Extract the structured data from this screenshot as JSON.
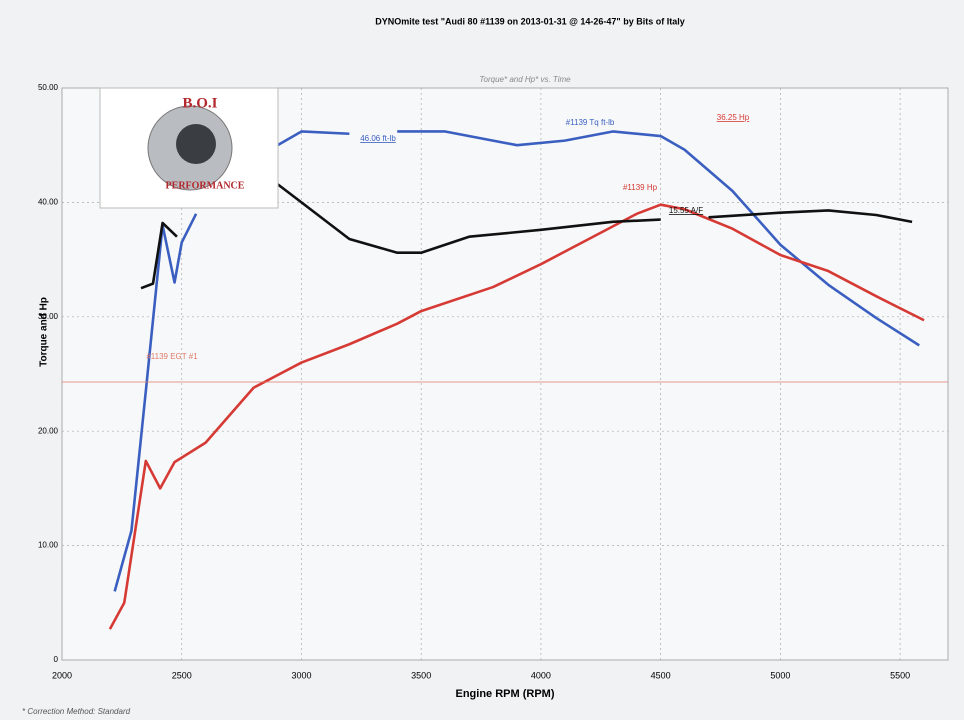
{
  "chart_data": {
    "type": "line",
    "title": "DYNOmite test \"Audi 80 #1139 on 2013-01-31 @ 14-26-47\" by Bits of Italy",
    "subtitle": "Torque* and Hp* vs. Time",
    "x_label": "Engine RPM (RPM)",
    "y_label": "Torque and Hp",
    "footnote": "* Correction Method: Standard",
    "xlim": [
      2000,
      5700
    ],
    "ylim": [
      0,
      50
    ],
    "xticks": [
      2000,
      2500,
      3000,
      3500,
      4000,
      4500,
      5000,
      5500
    ],
    "yticks": [
      0,
      {
        "value": 10,
        "label": "10.00"
      },
      {
        "value": 20,
        "label": "20.00"
      },
      {
        "value": 30,
        "label": "30.00"
      },
      {
        "value": 40,
        "label": "40.00"
      },
      {
        "value": 50,
        "label": "50.00"
      }
    ],
    "grid": true,
    "series": [
      {
        "name": "#1139 Tq ft-lb",
        "color": "#3a5fc0",
        "x": [
          2220,
          2290,
          2350,
          2420,
          2470,
          2500,
          2560,
          2700,
          2900,
          3000,
          3200,
          3300,
          3400,
          3600,
          3900,
          4100,
          4300,
          4500,
          4600,
          4800,
          5000,
          5200,
          5400,
          5580
        ],
        "values": [
          6,
          11.3,
          23.5,
          38,
          33,
          36.5,
          39,
          null,
          45,
          46.2,
          46,
          null,
          46.2,
          46.2,
          45,
          45.4,
          46.2,
          45.8,
          44.6,
          41,
          36.3,
          32.8,
          29.9,
          27.5
        ]
      },
      {
        "name": "#1139 Hp",
        "color": "#d63a35",
        "x": [
          2200,
          2260,
          2350,
          2410,
          2470,
          2600,
          2800,
          3000,
          3200,
          3400,
          3500,
          3800,
          4000,
          4200,
          4400,
          4500,
          4600,
          4800,
          5000,
          5200,
          5400,
          5600
        ],
        "values": [
          2.7,
          5,
          17.4,
          15,
          17.3,
          19,
          23.8,
          26,
          27.6,
          29.4,
          30.5,
          32.6,
          34.6,
          36.8,
          39,
          39.8,
          39.4,
          37.7,
          35.4,
          34,
          31.8,
          29.7
        ]
      },
      {
        "color": "#111111",
        "x": [
          2330,
          2380,
          2420,
          2480,
          2700,
          2900,
          3000,
          3200,
          3400,
          3500,
          3700,
          4000,
          4300,
          4500,
          4600,
          4700,
          5000,
          5200,
          5400,
          5550
        ],
        "values": [
          32.5,
          32.9,
          38.2,
          37,
          null,
          41.6,
          40,
          36.8,
          35.6,
          35.6,
          37,
          37.6,
          38.3,
          38.5,
          null,
          38.7,
          39.1,
          39.3,
          38.9,
          38.3
        ]
      },
      {
        "name": "#1139 EGT #1",
        "color": "#e07a6a",
        "x": [
          2000,
          5700
        ],
        "values": [
          24.3,
          24.3
        ]
      }
    ],
    "annotations": [
      {
        "text": "46.06 ft-lb",
        "color": "#3a5fc0"
      },
      {
        "text": "36.25 Hp",
        "color": "#d63a35"
      },
      {
        "text": "15.55 A/F",
        "color": "#111111"
      }
    ]
  },
  "logo": {
    "top": "B.O.I",
    "bottom": "PERFORMANCE"
  }
}
